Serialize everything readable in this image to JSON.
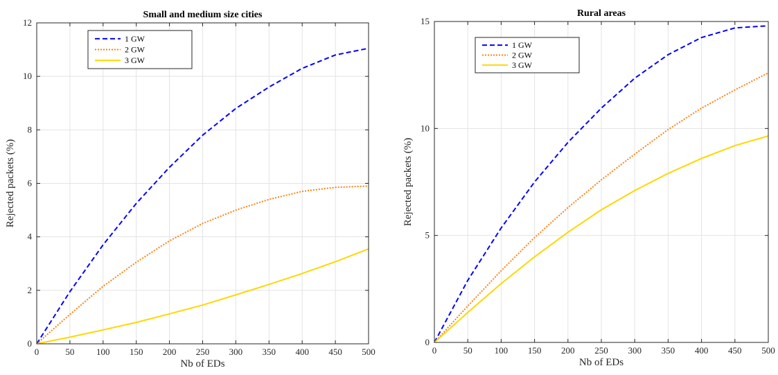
{
  "chart_data": [
    {
      "type": "line",
      "title": "Small and medium size cities",
      "xlabel": "Nb of EDs",
      "ylabel": "Rejected packets (%)",
      "xlim": [
        0,
        500
      ],
      "ylim": [
        0,
        12
      ],
      "xticks": [
        0,
        50,
        100,
        150,
        200,
        250,
        300,
        350,
        400,
        450,
        500
      ],
      "yticks": [
        0,
        2,
        4,
        6,
        8,
        10,
        12
      ],
      "grid": true,
      "legend_position": "top-left",
      "x": [
        0,
        50,
        100,
        150,
        200,
        250,
        300,
        350,
        400,
        450,
        500
      ],
      "series": [
        {
          "name": "1 GW",
          "color": "#0000ff",
          "dash": "dashed",
          "values": [
            0,
            1.95,
            3.7,
            5.25,
            6.6,
            7.8,
            8.8,
            9.6,
            10.3,
            10.8,
            11.05
          ]
        },
        {
          "name": "2 GW",
          "color": "#ff7f0e",
          "dash": "dotted",
          "values": [
            0,
            1.1,
            2.15,
            3.05,
            3.85,
            4.5,
            5.0,
            5.4,
            5.7,
            5.85,
            5.9
          ]
        },
        {
          "name": "3 GW",
          "color": "#ffd700",
          "dash": "solid",
          "values": [
            0,
            0.25,
            0.52,
            0.8,
            1.12,
            1.45,
            1.83,
            2.22,
            2.63,
            3.07,
            3.55
          ]
        }
      ]
    },
    {
      "type": "line",
      "title": "Rural areas",
      "xlabel": "Nb of EDs",
      "ylabel": "Rejected packets (%)",
      "xlim": [
        0,
        500
      ],
      "ylim": [
        0,
        15
      ],
      "xticks": [
        0,
        50,
        100,
        150,
        200,
        250,
        300,
        350,
        400,
        450,
        500
      ],
      "yticks": [
        0,
        5,
        10,
        15
      ],
      "grid": true,
      "legend_position": "top-left",
      "x": [
        0,
        50,
        100,
        150,
        200,
        250,
        300,
        350,
        400,
        450,
        500
      ],
      "series": [
        {
          "name": "1 GW",
          "color": "#0000ff",
          "dash": "dashed",
          "values": [
            0,
            2.9,
            5.35,
            7.5,
            9.35,
            10.95,
            12.35,
            13.45,
            14.25,
            14.7,
            14.8
          ]
        },
        {
          "name": "2 GW",
          "color": "#ff7f0e",
          "dash": "dotted",
          "values": [
            0,
            1.7,
            3.35,
            4.9,
            6.3,
            7.6,
            8.8,
            9.95,
            10.95,
            11.8,
            12.6
          ]
        },
        {
          "name": "3 GW",
          "color": "#ffd700",
          "dash": "solid",
          "values": [
            0,
            1.4,
            2.75,
            4.0,
            5.15,
            6.2,
            7.1,
            7.9,
            8.6,
            9.2,
            9.65
          ]
        }
      ]
    }
  ]
}
